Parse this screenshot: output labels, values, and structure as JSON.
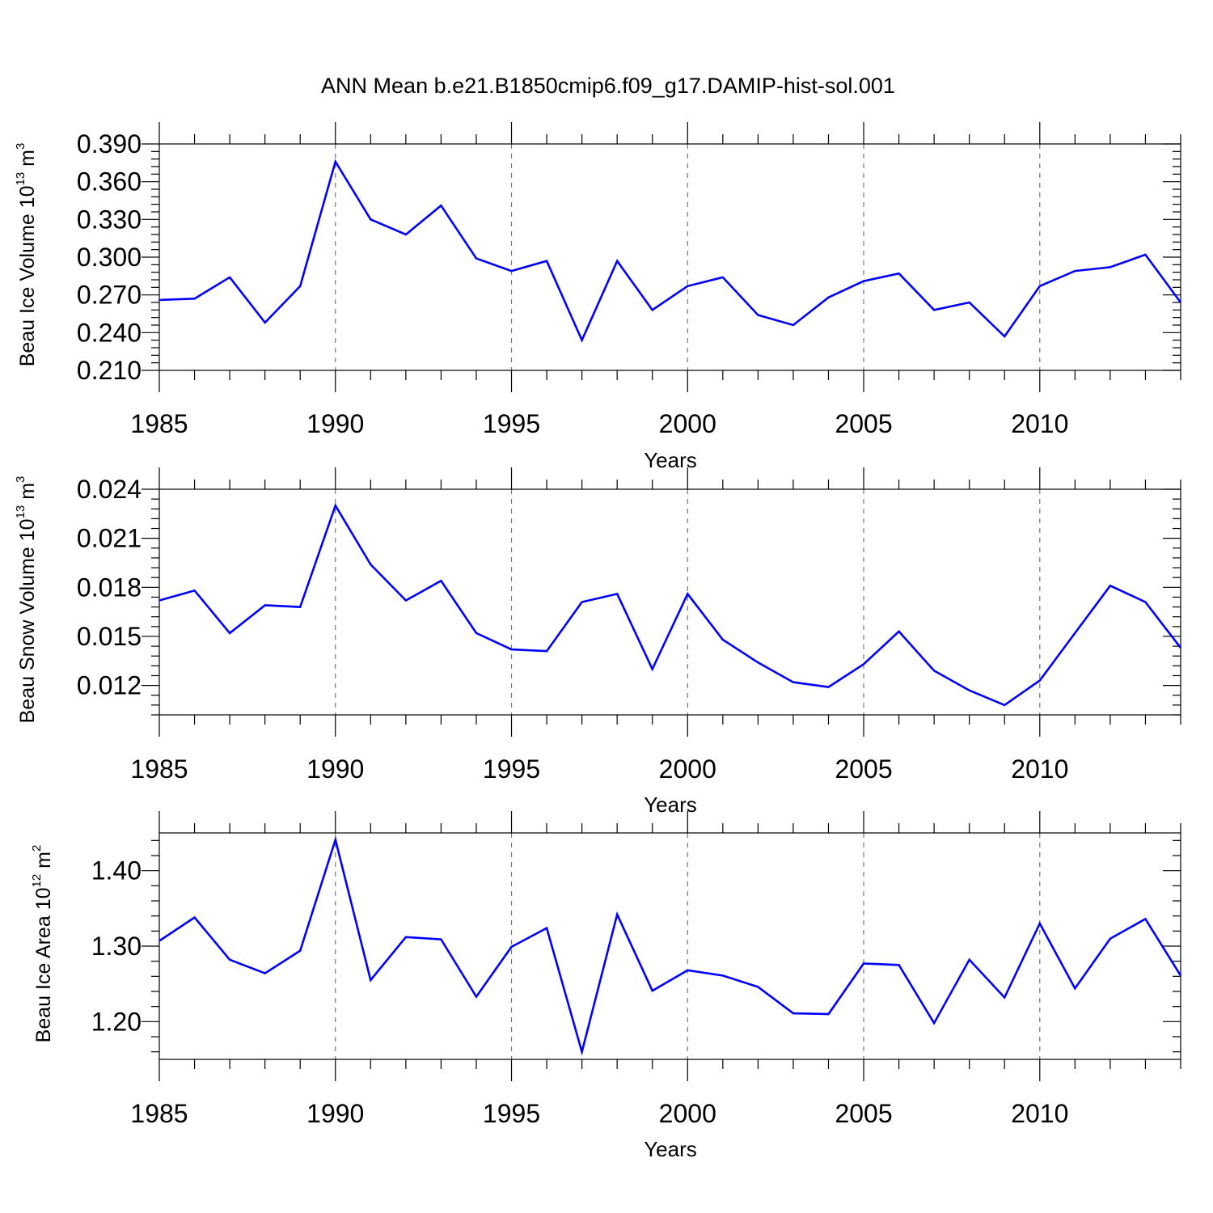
{
  "figure_title": "ANN Mean b.e21.B1850cmip6.f09_g17.DAMIP-hist-sol.001",
  "colors": {
    "series": "#0000ff",
    "grid": "#777777",
    "axes": "#000000"
  },
  "chart_data": [
    {
      "type": "line",
      "title": "ANN Mean b.e21.B1850cmip6.f09_g17.DAMIP-hist-sol.001",
      "ylabel": {
        "base": "Beau Ice Volume 10",
        "exp": "13",
        "unit": " m",
        "unit_exp": "3"
      },
      "xlabel": "Years",
      "xlim": [
        1985,
        2014
      ],
      "ylim": [
        0.21,
        0.39
      ],
      "xticks": [
        1985,
        1990,
        1995,
        2000,
        2005,
        2010
      ],
      "xtick_labels": [
        "1985",
        "1990",
        "1995",
        "2000",
        "2005",
        "2010"
      ],
      "yticks": [
        0.21,
        0.24,
        0.27,
        0.3,
        0.33,
        0.36,
        0.39
      ],
      "ytick_labels": [
        "0.210",
        "0.240",
        "0.270",
        "0.300",
        "0.330",
        "0.360",
        "0.390"
      ],
      "grid": "x-dashed",
      "x": [
        1985,
        1986,
        1987,
        1988,
        1989,
        1990,
        1991,
        1992,
        1993,
        1994,
        1995,
        1996,
        1997,
        1998,
        1999,
        2000,
        2001,
        2002,
        2003,
        2004,
        2005,
        2006,
        2007,
        2008,
        2009,
        2010,
        2011,
        2012,
        2013,
        2014
      ],
      "series": [
        {
          "name": "Beau Ice Volume",
          "values": [
            0.266,
            0.267,
            0.284,
            0.248,
            0.277,
            0.376,
            0.33,
            0.318,
            0.341,
            0.299,
            0.289,
            0.297,
            0.234,
            0.297,
            0.258,
            0.277,
            0.284,
            0.254,
            0.246,
            0.268,
            0.281,
            0.287,
            0.258,
            0.264,
            0.237,
            0.277,
            0.289,
            0.292,
            0.302,
            0.264
          ]
        }
      ]
    },
    {
      "type": "line",
      "ylabel": {
        "base": "Beau Snow Volume 10",
        "exp": "13",
        "unit": " m",
        "unit_exp": "3"
      },
      "xlabel": "Years",
      "xlim": [
        1985,
        2014
      ],
      "ylim": [
        0.0102,
        0.024
      ],
      "xticks": [
        1985,
        1990,
        1995,
        2000,
        2005,
        2010
      ],
      "xtick_labels": [
        "1985",
        "1990",
        "1995",
        "2000",
        "2005",
        "2010"
      ],
      "yticks": [
        0.012,
        0.015,
        0.018,
        0.021,
        0.024
      ],
      "ytick_labels": [
        "0.012",
        "0.015",
        "0.018",
        "0.021",
        "0.024"
      ],
      "grid": "x-dashed",
      "x": [
        1985,
        1986,
        1987,
        1988,
        1989,
        1990,
        1991,
        1992,
        1993,
        1994,
        1995,
        1996,
        1997,
        1998,
        1999,
        2000,
        2001,
        2002,
        2003,
        2004,
        2005,
        2006,
        2007,
        2008,
        2009,
        2010,
        2011,
        2012,
        2013,
        2014
      ],
      "series": [
        {
          "name": "Beau Snow Volume",
          "values": [
            0.0172,
            0.0178,
            0.0152,
            0.0169,
            0.0168,
            0.023,
            0.0194,
            0.0172,
            0.0184,
            0.0152,
            0.0142,
            0.0141,
            0.0171,
            0.0176,
            0.013,
            0.0176,
            0.0148,
            0.0134,
            0.0122,
            0.0119,
            0.0133,
            0.0153,
            0.0129,
            0.0117,
            0.0108,
            0.0123,
            0.0152,
            0.0181,
            0.0171,
            0.0143
          ]
        }
      ]
    },
    {
      "type": "line",
      "ylabel": {
        "base": "Beau Ice Area 10",
        "exp": "12",
        "unit": " m",
        "unit_exp": "2"
      },
      "xlabel": "Years",
      "xlim": [
        1985,
        2014
      ],
      "ylim": [
        1.15,
        1.45
      ],
      "xticks": [
        1985,
        1990,
        1995,
        2000,
        2005,
        2010
      ],
      "xtick_labels": [
        "1985",
        "1990",
        "1995",
        "2000",
        "2005",
        "2010"
      ],
      "yticks": [
        1.2,
        1.3,
        1.4
      ],
      "ytick_labels": [
        "1.20",
        "1.30",
        "1.40"
      ],
      "grid": "x-dashed",
      "x": [
        1985,
        1986,
        1987,
        1988,
        1989,
        1990,
        1991,
        1992,
        1993,
        1994,
        1995,
        1996,
        1997,
        1998,
        1999,
        2000,
        2001,
        2002,
        2003,
        2004,
        2005,
        2006,
        2007,
        2008,
        2009,
        2010,
        2011,
        2012,
        2013,
        2014
      ],
      "series": [
        {
          "name": "Beau Ice Area",
          "values": [
            1.307,
            1.338,
            1.282,
            1.264,
            1.294,
            1.441,
            1.255,
            1.312,
            1.309,
            1.233,
            1.299,
            1.324,
            1.16,
            1.342,
            1.241,
            1.268,
            1.261,
            1.246,
            1.211,
            1.21,
            1.277,
            1.275,
            1.198,
            1.282,
            1.232,
            1.33,
            1.244,
            1.31,
            1.336,
            1.261
          ]
        }
      ]
    }
  ]
}
